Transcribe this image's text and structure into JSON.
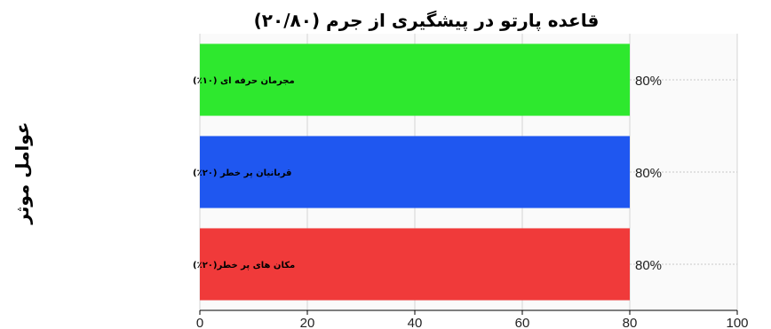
{
  "chart_data": {
    "type": "bar",
    "orientation": "horizontal",
    "title": "قاعده پارتو در پیشگیری از جرم (۲۰/۸۰)",
    "ylabel": "عوامل موثر",
    "xlabel": "",
    "categories": [
      "مجرمان حرفه ای (۱۰٪)",
      "قربانیان پر خطر (۲۰٪)",
      "مکان های پر خطر(۲۰٪)"
    ],
    "values": [
      80,
      80,
      80
    ],
    "value_labels": [
      "80%",
      "80%",
      "80%"
    ],
    "colors": [
      "#2ee82e",
      "#1f57f0",
      "#f03a3a"
    ],
    "xlim": [
      0,
      100
    ],
    "xticks": [
      0,
      20,
      40,
      60,
      80,
      100
    ],
    "grid": true
  }
}
